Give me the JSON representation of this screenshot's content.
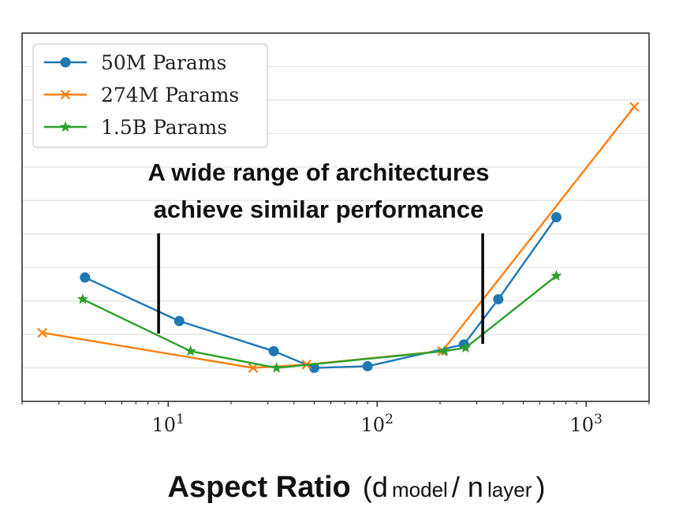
{
  "chart_data": {
    "type": "line",
    "xscale": "log",
    "xlim": [
      2.0,
      2000
    ],
    "ylim": [
      0,
      11
    ],
    "y_tick_labels_shown": false,
    "grid": "horizontal",
    "legend_position": "top-left",
    "x_ticks": [
      {
        "value": 10,
        "base": "10",
        "exp": "1"
      },
      {
        "value": 100,
        "base": "10",
        "exp": "2"
      },
      {
        "value": 1000,
        "base": "10",
        "exp": "3"
      }
    ],
    "xlabel": {
      "bold": "Aspect Ratio",
      "open": "(d",
      "sub1": "model",
      "mid": " / n",
      "sub2": "layer",
      "close": ")"
    },
    "annotation": {
      "lines": [
        "A wide range of architectures",
        "achieve similar performance"
      ],
      "range_x": [
        9,
        320
      ]
    },
    "series": [
      {
        "name": "50M Params",
        "color": "#1f77b4",
        "marker": "circle",
        "x": [
          4,
          11.3,
          32,
          50,
          90,
          260,
          380,
          720
        ],
        "y": [
          3.7,
          2.4,
          1.5,
          1.0,
          1.05,
          1.7,
          3.05,
          5.5
        ]
      },
      {
        "name": "274M Params",
        "color": "#ff7f0e",
        "marker": "x",
        "x": [
          2.5,
          25.5,
          46,
          205,
          1700
        ],
        "y": [
          2.05,
          1.0,
          1.1,
          1.5,
          8.8
        ]
      },
      {
        "name": "1.5B Params",
        "color": "#2ca02c",
        "marker": "star",
        "x": [
          3.9,
          12.8,
          33,
          210,
          265,
          720
        ],
        "y": [
          3.05,
          1.5,
          1.0,
          1.5,
          1.6,
          3.75
        ]
      }
    ]
  }
}
